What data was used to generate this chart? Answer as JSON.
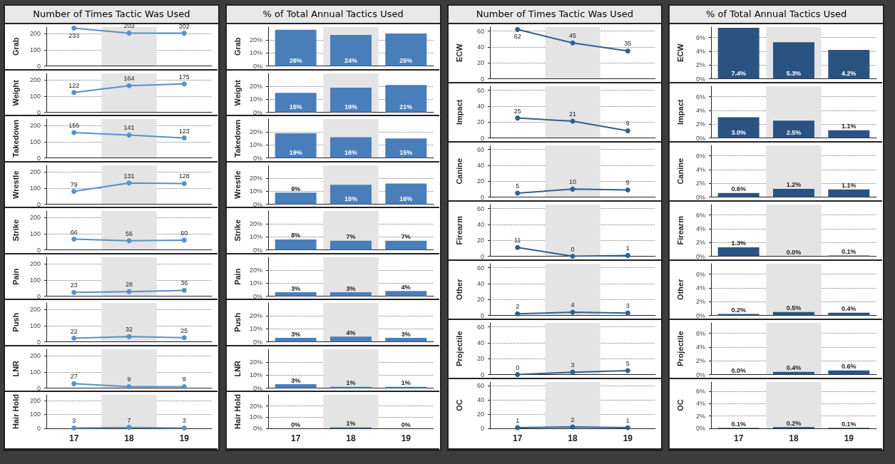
{
  "chart_data": [
    {
      "type": "line",
      "title": "Number of Times Tactic Was Used",
      "ylabel": "Grab",
      "categories": [
        "17",
        "18",
        "19"
      ],
      "values": [
        233,
        203,
        202
      ],
      "color": "#5b8fc7",
      "ylim": [
        0,
        240
      ],
      "yticks": [
        0,
        100,
        200
      ],
      "grid": "y",
      "data_labels": true,
      "marker": "circle",
      "bands": [
        {
          "axis": "x",
          "from": "18",
          "to": "18",
          "color": "#e4e4e4"
        }
      ],
      "tick_labels": "y"
    },
    {
      "type": "line",
      "ylabel": "Weight",
      "categories": [
        "17",
        "18",
        "19"
      ],
      "values": [
        122,
        164,
        175
      ],
      "color": "#5b8fc7",
      "ylim": [
        0,
        240
      ],
      "yticks": [
        0,
        100,
        200
      ],
      "grid": "y",
      "data_labels": true,
      "marker": "circle",
      "bands": [
        {
          "axis": "x",
          "from": "18",
          "to": "18",
          "color": "#e4e4e4"
        }
      ],
      "tick_labels": "y"
    },
    {
      "type": "line",
      "ylabel": "Takedown",
      "categories": [
        "17",
        "18",
        "19"
      ],
      "values": [
        156,
        141,
        123
      ],
      "color": "#5b8fc7",
      "ylim": [
        0,
        240
      ],
      "yticks": [
        0,
        100,
        200
      ],
      "grid": "y",
      "data_labels": true,
      "marker": "circle",
      "bands": [
        {
          "axis": "x",
          "from": "18",
          "to": "18",
          "color": "#e4e4e4"
        }
      ],
      "tick_labels": "y"
    },
    {
      "type": "line",
      "ylabel": "Wrestle",
      "categories": [
        "17",
        "18",
        "19"
      ],
      "values": [
        79,
        131,
        128
      ],
      "color": "#5b8fc7",
      "ylim": [
        0,
        240
      ],
      "yticks": [
        0,
        100,
        200
      ],
      "grid": "y",
      "data_labels": true,
      "marker": "circle",
      "bands": [
        {
          "axis": "x",
          "from": "18",
          "to": "18",
          "color": "#e4e4e4"
        }
      ],
      "tick_labels": "y"
    },
    {
      "type": "line",
      "ylabel": "Strike",
      "categories": [
        "17",
        "18",
        "19"
      ],
      "values": [
        66,
        56,
        60
      ],
      "color": "#5b8fc7",
      "ylim": [
        0,
        240
      ],
      "yticks": [
        0,
        100,
        200
      ],
      "grid": "y",
      "data_labels": true,
      "marker": "circle",
      "bands": [
        {
          "axis": "x",
          "from": "18",
          "to": "18",
          "color": "#e4e4e4"
        }
      ],
      "tick_labels": "y"
    },
    {
      "type": "line",
      "ylabel": "Pain",
      "categories": [
        "17",
        "18",
        "19"
      ],
      "values": [
        23,
        28,
        36
      ],
      "color": "#5b8fc7",
      "ylim": [
        0,
        240
      ],
      "yticks": [
        0,
        100,
        200
      ],
      "grid": "y",
      "data_labels": true,
      "marker": "circle",
      "bands": [
        {
          "axis": "x",
          "from": "18",
          "to": "18",
          "color": "#e4e4e4"
        }
      ],
      "tick_labels": "y"
    },
    {
      "type": "line",
      "ylabel": "Push",
      "categories": [
        "17",
        "18",
        "19"
      ],
      "values": [
        22,
        32,
        25
      ],
      "color": "#5b8fc7",
      "ylim": [
        0,
        240
      ],
      "yticks": [
        0,
        100,
        200
      ],
      "grid": "y",
      "data_labels": true,
      "marker": "circle",
      "bands": [
        {
          "axis": "x",
          "from": "18",
          "to": "18",
          "color": "#e4e4e4"
        }
      ],
      "tick_labels": "y"
    },
    {
      "type": "line",
      "ylabel": "LNR",
      "categories": [
        "17",
        "18",
        "19"
      ],
      "values": [
        27,
        9,
        9
      ],
      "color": "#5b8fc7",
      "ylim": [
        0,
        240
      ],
      "yticks": [
        0,
        100,
        200
      ],
      "grid": "y",
      "data_labels": true,
      "marker": "circle",
      "bands": [
        {
          "axis": "x",
          "from": "18",
          "to": "18",
          "color": "#e4e4e4"
        }
      ],
      "tick_labels": "y"
    },
    {
      "type": "line",
      "ylabel": "Hair Hold",
      "categories": [
        "17",
        "18",
        "19"
      ],
      "values": [
        3,
        7,
        3
      ],
      "color": "#5b8fc7",
      "ylim": [
        0,
        240
      ],
      "yticks": [
        0,
        100,
        200
      ],
      "grid": "y",
      "data_labels": true,
      "marker": "circle",
      "bands": [
        {
          "axis": "x",
          "from": "18",
          "to": "18",
          "color": "#e4e4e4"
        }
      ]
    },
    {
      "type": "bar",
      "title": "% of Total Annual Tactics Used",
      "ylabel": "Grab",
      "categories": [
        "17",
        "18",
        "19"
      ],
      "values": [
        28,
        24,
        25
      ],
      "value_labels": [
        "28%",
        "24%",
        "25%"
      ],
      "color": "#4a7ebb",
      "ylim": [
        0,
        30
      ],
      "yticks": [
        {
          "value": 0,
          "label": "0%"
        },
        {
          "value": 10,
          "label": "10%"
        },
        {
          "value": 20,
          "label": "20%"
        }
      ],
      "grid": "y",
      "bands": [
        {
          "axis": "x",
          "from": "18",
          "to": "18",
          "color": "#e4e4e4"
        }
      ],
      "tick_labels": "y"
    },
    {
      "type": "bar",
      "ylabel": "Weight",
      "categories": [
        "17",
        "18",
        "19"
      ],
      "values": [
        15,
        19,
        21
      ],
      "value_labels": [
        "15%",
        "19%",
        "21%"
      ],
      "color": "#4a7ebb",
      "ylim": [
        0,
        30
      ],
      "yticks": [
        {
          "value": 0,
          "label": "0%"
        },
        {
          "value": 10,
          "label": "10%"
        },
        {
          "value": 20,
          "label": "20%"
        }
      ],
      "grid": "y",
      "bands": [
        {
          "axis": "x",
          "from": "18",
          "to": "18",
          "color": "#e4e4e4"
        }
      ],
      "tick_labels": "y"
    },
    {
      "type": "bar",
      "ylabel": "Takedown",
      "categories": [
        "17",
        "18",
        "19"
      ],
      "values": [
        19,
        16,
        15
      ],
      "value_labels": [
        "19%",
        "16%",
        "15%"
      ],
      "color": "#4a7ebb",
      "ylim": [
        0,
        30
      ],
      "yticks": [
        {
          "value": 0,
          "label": "0%"
        },
        {
          "value": 10,
          "label": "10%"
        },
        {
          "value": 20,
          "label": "20%"
        }
      ],
      "grid": "y",
      "bands": [
        {
          "axis": "x",
          "from": "18",
          "to": "18",
          "color": "#e4e4e4"
        }
      ],
      "tick_labels": "y"
    },
    {
      "type": "bar",
      "ylabel": "Wrestle",
      "categories": [
        "17",
        "18",
        "19"
      ],
      "values": [
        9,
        15,
        16
      ],
      "value_labels": [
        "9%",
        "15%",
        "16%"
      ],
      "color": "#4a7ebb",
      "ylim": [
        0,
        30
      ],
      "yticks": [
        {
          "value": 0,
          "label": "0%"
        },
        {
          "value": 10,
          "label": "10%"
        },
        {
          "value": 20,
          "label": "20%"
        }
      ],
      "grid": "y",
      "bands": [
        {
          "axis": "x",
          "from": "18",
          "to": "18",
          "color": "#e4e4e4"
        }
      ],
      "tick_labels": "y"
    },
    {
      "type": "bar",
      "ylabel": "Strike",
      "categories": [
        "17",
        "18",
        "19"
      ],
      "values": [
        8,
        7,
        7
      ],
      "value_labels": [
        "8%",
        "7%",
        "7%"
      ],
      "color": "#4a7ebb",
      "ylim": [
        0,
        30
      ],
      "yticks": [
        {
          "value": 0,
          "label": "0%"
        },
        {
          "value": 10,
          "label": "10%"
        },
        {
          "value": 20,
          "label": "20%"
        }
      ],
      "grid": "y",
      "bands": [
        {
          "axis": "x",
          "from": "18",
          "to": "18",
          "color": "#e4e4e4"
        }
      ],
      "tick_labels": "y"
    },
    {
      "type": "bar",
      "ylabel": "Pain",
      "categories": [
        "17",
        "18",
        "19"
      ],
      "values": [
        3,
        3,
        4
      ],
      "value_labels": [
        "3%",
        "3%",
        "4%"
      ],
      "color": "#4a7ebb",
      "ylim": [
        0,
        30
      ],
      "yticks": [
        {
          "value": 0,
          "label": "0%"
        },
        {
          "value": 10,
          "label": "10%"
        },
        {
          "value": 20,
          "label": "20%"
        }
      ],
      "grid": "y",
      "bands": [
        {
          "axis": "x",
          "from": "18",
          "to": "18",
          "color": "#e4e4e4"
        }
      ],
      "tick_labels": "y"
    },
    {
      "type": "bar",
      "ylabel": "Push",
      "categories": [
        "17",
        "18",
        "19"
      ],
      "values": [
        3,
        4,
        3
      ],
      "value_labels": [
        "3%",
        "4%",
        "3%"
      ],
      "color": "#4a7ebb",
      "ylim": [
        0,
        30
      ],
      "yticks": [
        {
          "value": 0,
          "label": "0%"
        },
        {
          "value": 10,
          "label": "10%"
        },
        {
          "value": 20,
          "label": "20%"
        }
      ],
      "grid": "y",
      "bands": [
        {
          "axis": "x",
          "from": "18",
          "to": "18",
          "color": "#e4e4e4"
        }
      ],
      "tick_labels": "y"
    },
    {
      "type": "bar",
      "ylabel": "LNR",
      "categories": [
        "17",
        "18",
        "19"
      ],
      "values": [
        3,
        1,
        1
      ],
      "value_labels": [
        "3%",
        "1%",
        "1%"
      ],
      "color": "#4a7ebb",
      "ylim": [
        0,
        30
      ],
      "yticks": [
        {
          "value": 0,
          "label": "0%"
        },
        {
          "value": 10,
          "label": "10%"
        },
        {
          "value": 20,
          "label": "20%"
        }
      ],
      "grid": "y",
      "bands": [
        {
          "axis": "x",
          "from": "18",
          "to": "18",
          "color": "#e4e4e4"
        }
      ],
      "tick_labels": "y"
    },
    {
      "type": "bar",
      "ylabel": "Hair Hold",
      "categories": [
        "17",
        "18",
        "19"
      ],
      "values": [
        0,
        1,
        0
      ],
      "value_labels": [
        "0%",
        "1%",
        "0%"
      ],
      "color": "#4a7ebb",
      "ylim": [
        0,
        30
      ],
      "yticks": [
        {
          "value": 0,
          "label": "0%"
        },
        {
          "value": 10,
          "label": "10%"
        },
        {
          "value": 20,
          "label": "20%"
        }
      ],
      "grid": "y",
      "bands": [
        {
          "axis": "x",
          "from": "18",
          "to": "18",
          "color": "#e4e4e4"
        }
      ]
    },
    {
      "type": "line",
      "title": "Number of Times Tactic Was Used",
      "ylabel": "ECW",
      "categories": [
        "17",
        "18",
        "19"
      ],
      "values": [
        62,
        45,
        35
      ],
      "color": "#2f5f8f",
      "ylim": [
        0,
        65
      ],
      "yticks": [
        0,
        20,
        40,
        60
      ],
      "grid": "y",
      "data_labels": true,
      "marker": "circle",
      "bands": [
        {
          "axis": "x",
          "from": "18",
          "to": "18",
          "color": "#e4e4e4"
        }
      ],
      "tick_labels": "y"
    },
    {
      "type": "line",
      "ylabel": "Impact",
      "categories": [
        "17",
        "18",
        "19"
      ],
      "values": [
        25,
        21,
        9
      ],
      "color": "#2f5f8f",
      "ylim": [
        0,
        65
      ],
      "yticks": [
        0,
        20,
        40,
        60
      ],
      "grid": "y",
      "data_labels": true,
      "marker": "circle",
      "bands": [
        {
          "axis": "x",
          "from": "18",
          "to": "18",
          "color": "#e4e4e4"
        }
      ],
      "tick_labels": "y"
    },
    {
      "type": "line",
      "ylabel": "Canine",
      "categories": [
        "17",
        "18",
        "19"
      ],
      "values": [
        5,
        10,
        9
      ],
      "color": "#2f5f8f",
      "ylim": [
        0,
        65
      ],
      "yticks": [
        0,
        20,
        40,
        60
      ],
      "grid": "y",
      "data_labels": true,
      "marker": "circle",
      "bands": [
        {
          "axis": "x",
          "from": "18",
          "to": "18",
          "color": "#e4e4e4"
        }
      ],
      "tick_labels": "y"
    },
    {
      "type": "line",
      "ylabel": "Firearm",
      "categories": [
        "17",
        "18",
        "19"
      ],
      "values": [
        11,
        0,
        1
      ],
      "color": "#2f5f8f",
      "ylim": [
        0,
        65
      ],
      "yticks": [
        0,
        20,
        40,
        60
      ],
      "grid": "y",
      "data_labels": true,
      "marker": "circle",
      "bands": [
        {
          "axis": "x",
          "from": "18",
          "to": "18",
          "color": "#e4e4e4"
        }
      ],
      "tick_labels": "y"
    },
    {
      "type": "line",
      "ylabel": "Other",
      "categories": [
        "17",
        "18",
        "19"
      ],
      "values": [
        2,
        4,
        3
      ],
      "color": "#2f5f8f",
      "ylim": [
        0,
        65
      ],
      "yticks": [
        0,
        20,
        40,
        60
      ],
      "grid": "y",
      "data_labels": true,
      "marker": "circle",
      "bands": [
        {
          "axis": "x",
          "from": "18",
          "to": "18",
          "color": "#e4e4e4"
        }
      ],
      "tick_labels": "y"
    },
    {
      "type": "line",
      "ylabel": "Projectile",
      "categories": [
        "17",
        "18",
        "19"
      ],
      "values": [
        0,
        3,
        5
      ],
      "color": "#2f5f8f",
      "ylim": [
        0,
        65
      ],
      "yticks": [
        0,
        20,
        40,
        60
      ],
      "grid": "y",
      "data_labels": true,
      "marker": "circle",
      "bands": [
        {
          "axis": "x",
          "from": "18",
          "to": "18",
          "color": "#e4e4e4"
        }
      ],
      "tick_labels": "y"
    },
    {
      "type": "line",
      "ylabel": "OC",
      "categories": [
        "17",
        "18",
        "19"
      ],
      "values": [
        1,
        2,
        1
      ],
      "color": "#2f5f8f",
      "ylim": [
        0,
        65
      ],
      "yticks": [
        0,
        20,
        40,
        60
      ],
      "grid": "y",
      "data_labels": true,
      "marker": "circle",
      "bands": [
        {
          "axis": "x",
          "from": "18",
          "to": "18",
          "color": "#e4e4e4"
        }
      ]
    },
    {
      "type": "bar",
      "title": "% of Total Annual Tactics Used",
      "ylabel": "ECW",
      "categories": [
        "17",
        "18",
        "19"
      ],
      "values": [
        7.4,
        5.3,
        4.2
      ],
      "value_labels": [
        "7.4%",
        "5.3%",
        "4.2%"
      ],
      "color": "#2b5382",
      "ylim": [
        0,
        7.5
      ],
      "yticks": [
        {
          "value": 0,
          "label": "0%"
        },
        {
          "value": 2,
          "label": "2%"
        },
        {
          "value": 4,
          "label": "4%"
        },
        {
          "value": 6,
          "label": "6%"
        }
      ],
      "grid": "y",
      "bands": [
        {
          "axis": "x",
          "from": "18",
          "to": "18",
          "color": "#e4e4e4"
        }
      ],
      "tick_labels": "y"
    },
    {
      "type": "bar",
      "ylabel": "Impact",
      "categories": [
        "17",
        "18",
        "19"
      ],
      "values": [
        3.0,
        2.5,
        1.1
      ],
      "value_labels": [
        "3.0%",
        "2.5%",
        "1.1%"
      ],
      "color": "#2b5382",
      "ylim": [
        0,
        7.5
      ],
      "yticks": [
        {
          "value": 0,
          "label": "0%"
        },
        {
          "value": 2,
          "label": "2%"
        },
        {
          "value": 4,
          "label": "4%"
        },
        {
          "value": 6,
          "label": "6%"
        }
      ],
      "grid": "y",
      "bands": [
        {
          "axis": "x",
          "from": "18",
          "to": "18",
          "color": "#e4e4e4"
        }
      ],
      "tick_labels": "y"
    },
    {
      "type": "bar",
      "ylabel": "Canine",
      "categories": [
        "17",
        "18",
        "19"
      ],
      "values": [
        0.6,
        1.2,
        1.1
      ],
      "value_labels": [
        "0.6%",
        "1.2%",
        "1.1%"
      ],
      "color": "#2b5382",
      "ylim": [
        0,
        7.5
      ],
      "yticks": [
        {
          "value": 0,
          "label": "0%"
        },
        {
          "value": 2,
          "label": "2%"
        },
        {
          "value": 4,
          "label": "4%"
        },
        {
          "value": 6,
          "label": "6%"
        }
      ],
      "grid": "y",
      "bands": [
        {
          "axis": "x",
          "from": "18",
          "to": "18",
          "color": "#e4e4e4"
        }
      ],
      "tick_labels": "y"
    },
    {
      "type": "bar",
      "ylabel": "Firearm",
      "categories": [
        "17",
        "18",
        "19"
      ],
      "values": [
        1.3,
        0.0,
        0.1
      ],
      "value_labels": [
        "1.3%",
        "0.0%",
        "0.1%"
      ],
      "color": "#2b5382",
      "ylim": [
        0,
        7.5
      ],
      "yticks": [
        {
          "value": 0,
          "label": "0%"
        },
        {
          "value": 2,
          "label": "2%"
        },
        {
          "value": 4,
          "label": "4%"
        },
        {
          "value": 6,
          "label": "6%"
        }
      ],
      "grid": "y",
      "bands": [
        {
          "axis": "x",
          "from": "18",
          "to": "18",
          "color": "#e4e4e4"
        }
      ],
      "tick_labels": "y"
    },
    {
      "type": "bar",
      "ylabel": "Other",
      "categories": [
        "17",
        "18",
        "19"
      ],
      "values": [
        0.2,
        0.5,
        0.4
      ],
      "value_labels": [
        "0.2%",
        "0.5%",
        "0.4%"
      ],
      "color": "#2b5382",
      "ylim": [
        0,
        7.5
      ],
      "yticks": [
        {
          "value": 0,
          "label": "0%"
        },
        {
          "value": 2,
          "label": "2%"
        },
        {
          "value": 4,
          "label": "4%"
        },
        {
          "value": 6,
          "label": "6%"
        }
      ],
      "grid": "y",
      "bands": [
        {
          "axis": "x",
          "from": "18",
          "to": "18",
          "color": "#e4e4e4"
        }
      ],
      "tick_labels": "y"
    },
    {
      "type": "bar",
      "ylabel": "Projectile",
      "categories": [
        "17",
        "18",
        "19"
      ],
      "values": [
        0.0,
        0.4,
        0.6
      ],
      "value_labels": [
        "0.0%",
        "0.4%",
        "0.6%"
      ],
      "color": "#2b5382",
      "ylim": [
        0,
        7.5
      ],
      "yticks": [
        {
          "value": 0,
          "label": "0%"
        },
        {
          "value": 2,
          "label": "2%"
        },
        {
          "value": 4,
          "label": "4%"
        },
        {
          "value": 6,
          "label": "6%"
        }
      ],
      "grid": "y",
      "bands": [
        {
          "axis": "x",
          "from": "18",
          "to": "18",
          "color": "#e4e4e4"
        }
      ],
      "tick_labels": "y"
    },
    {
      "type": "bar",
      "ylabel": "OC",
      "categories": [
        "17",
        "18",
        "19"
      ],
      "values": [
        0.1,
        0.2,
        0.1
      ],
      "value_labels": [
        "0.1%",
        "0.2%",
        "0.1%"
      ],
      "color": "#2b5382",
      "ylim": [
        0,
        7.5
      ],
      "yticks": [
        {
          "value": 0,
          "label": "0%"
        },
        {
          "value": 2,
          "label": "2%"
        },
        {
          "value": 4,
          "label": "4%"
        },
        {
          "value": 6,
          "label": "6%"
        }
      ],
      "grid": "y",
      "bands": [
        {
          "axis": "x",
          "from": "18",
          "to": "18",
          "color": "#e4e4e4"
        }
      ]
    }
  ]
}
